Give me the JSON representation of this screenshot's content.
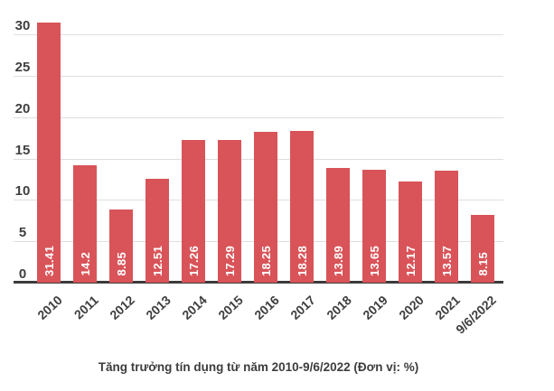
{
  "chart_data": {
    "type": "bar",
    "title": "Tăng trưởng tín dụng từ năm 2010-9/6/2022 (Đơn vị: %)",
    "categories": [
      "2010",
      "2011",
      "2012",
      "2013",
      "2014",
      "2015",
      "2016",
      "2017",
      "2018",
      "2019",
      "2020",
      "2021",
      "9/6/2022"
    ],
    "values": [
      31.41,
      14.2,
      8.85,
      12.51,
      17.26,
      17.29,
      18.25,
      18.28,
      13.89,
      13.65,
      12.17,
      13.57,
      8.15
    ],
    "value_labels": [
      "31.41",
      "14.2",
      "8.85",
      "12.51",
      "17.26",
      "17.29",
      "18.25",
      "18.28",
      "13.89",
      "13.65",
      "12.17",
      "13.57",
      "8.15"
    ],
    "yticks": [
      "0",
      "5",
      "10",
      "15",
      "20",
      "25",
      "30"
    ],
    "ylim": [
      0,
      33
    ],
    "xlabel": "",
    "ylabel": "",
    "grid": "horizontal",
    "legend": "none",
    "value_label_style": "white, bold, rotated 90°, inside bar near baseline",
    "colors": {
      "bar": "#d85459",
      "axis_line": "#3b3b3b",
      "gridline": "#dedede",
      "tick_text": "#3f3f3f",
      "value_text": "#ffffff",
      "title_text": "#3d3d3d",
      "background": "#ffffff"
    }
  }
}
